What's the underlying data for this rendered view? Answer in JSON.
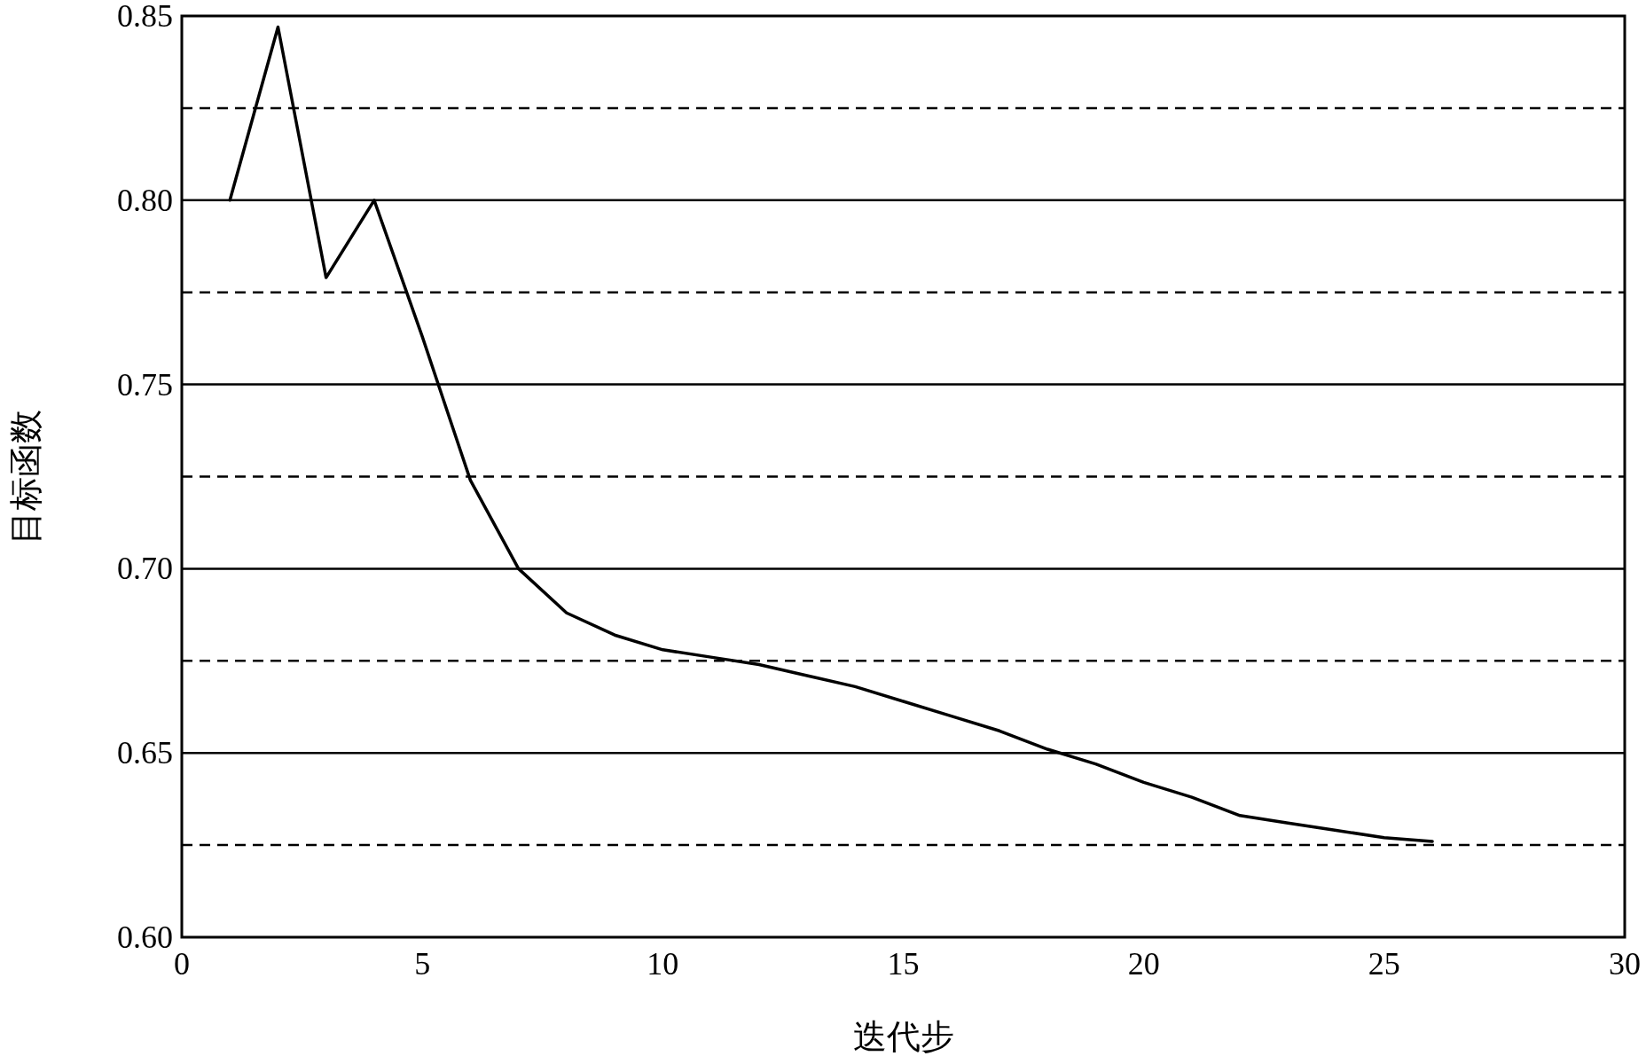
{
  "chart_data": {
    "type": "line",
    "xlabel": "迭代步",
    "ylabel": "目标函数",
    "x": [
      1,
      2,
      3,
      4,
      5,
      6,
      7,
      8,
      9,
      10,
      11,
      12,
      13,
      14,
      15,
      16,
      17,
      18,
      19,
      20,
      21,
      22,
      23,
      24,
      25,
      26
    ],
    "series": [
      {
        "color": "#000000",
        "values": [
          0.8,
          0.847,
          0.779,
          0.8,
          0.763,
          0.724,
          0.7,
          0.688,
          0.682,
          0.678,
          0.676,
          0.674,
          0.671,
          0.668,
          0.664,
          0.66,
          0.656,
          0.651,
          0.647,
          0.642,
          0.638,
          0.633,
          0.631,
          0.629,
          0.627,
          0.626
        ]
      }
    ],
    "xlim": [
      0,
      30
    ],
    "xticks": [
      0,
      5,
      10,
      15,
      20,
      25,
      30
    ],
    "ylim": [
      0.6,
      0.85
    ],
    "yticks": [
      {
        "value": 0.6,
        "label": "0.60"
      },
      {
        "value": 0.625,
        "label": null
      },
      {
        "value": 0.65,
        "label": "0.65"
      },
      {
        "value": 0.675,
        "label": null
      },
      {
        "value": 0.7,
        "label": "0.70"
      },
      {
        "value": 0.725,
        "label": null
      },
      {
        "value": 0.75,
        "label": "0.75"
      },
      {
        "value": 0.775,
        "label": null
      },
      {
        "value": 0.8,
        "label": "0.80"
      },
      {
        "value": 0.825,
        "label": null
      },
      {
        "value": 0.85,
        "label": "0.85"
      }
    ],
    "grid": "y",
    "marker": "none",
    "line_style": "solid"
  }
}
